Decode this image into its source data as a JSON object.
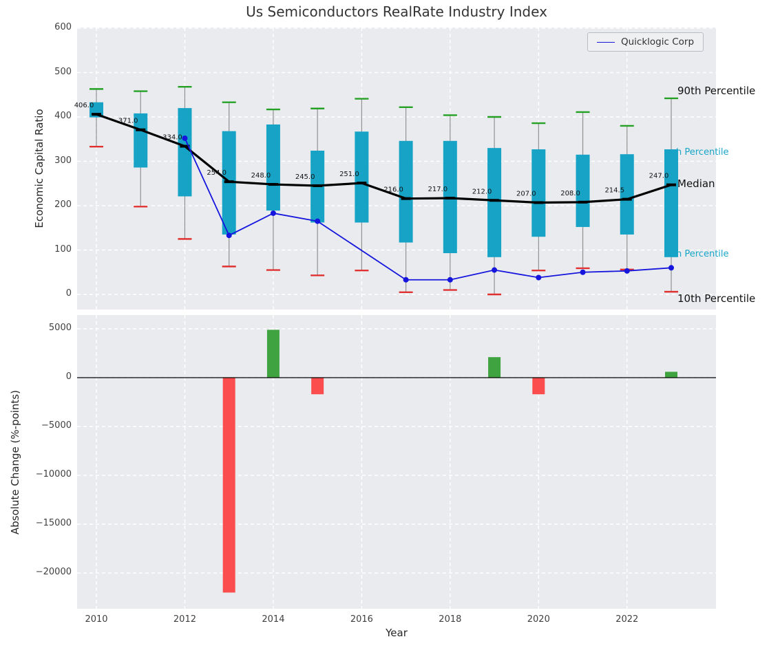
{
  "figure": {
    "title": "Us Semiconductors RealRate Industry Index",
    "top_ylabel": "Economic Capital Ratio",
    "bottom_ylabel": "Absolute Change (%-points)",
    "xlabel": "Year",
    "legend_label": "Quicklogic Corp",
    "right_labels": {
      "p90": "90th Percentile",
      "p75": "h Percentile",
      "median": "Median",
      "p25": "h Percentile",
      "p10": "10th Percentile"
    }
  },
  "chart_data": [
    {
      "type": "line",
      "subtype": "percentile-band-boxes-with-median-and-series",
      "title": "Us Semiconductors RealRate Industry Index",
      "ylabel": "Economic Capital Ratio",
      "ylim": [
        -34,
        602
      ],
      "grid": true,
      "legend_position": "upper right",
      "years": [
        2010,
        2011,
        2012,
        2013,
        2014,
        2015,
        2016,
        2017,
        2018,
        2019,
        2020,
        2021,
        2022,
        2023
      ],
      "xticks": [
        2010,
        2012,
        2014,
        2016,
        2018,
        2020,
        2022
      ],
      "yticks": [
        {
          "v": 0,
          "label": "0"
        },
        {
          "v": 100,
          "label": "100"
        },
        {
          "v": 200,
          "label": "200"
        },
        {
          "v": 300,
          "label": "300"
        },
        {
          "v": 400,
          "label": "400"
        },
        {
          "v": 500,
          "label": "500"
        },
        {
          "v": 600,
          "label": "600"
        }
      ],
      "p90": [
        463,
        458,
        468,
        433,
        417,
        419,
        441,
        422,
        404,
        400,
        386,
        411,
        380,
        442
      ],
      "q75": [
        433,
        408,
        420,
        368,
        383,
        324,
        367,
        346,
        346,
        330,
        327,
        315,
        316,
        327
      ],
      "median": [
        406,
        371,
        334,
        254,
        248,
        245,
        251,
        216,
        217,
        212,
        207,
        208,
        214.5,
        247
      ],
      "median_labels": [
        "406.0",
        "371.0",
        "334.0",
        "254.0",
        "248.0",
        "245.0",
        "251.0",
        "216.0",
        "217.0",
        "212.0",
        "207.0",
        "208.0",
        "214.5",
        "247.0"
      ],
      "q25": [
        399,
        286,
        221,
        135,
        189,
        162,
        162,
        117,
        93,
        84,
        130,
        152,
        135,
        84
      ],
      "p10": [
        333,
        198,
        125,
        63,
        55,
        43,
        54,
        5,
        10,
        0,
        54,
        59,
        56,
        6
      ],
      "series": [
        {
          "name": "Quicklogic Corp",
          "values": [
            null,
            null,
            352,
            133,
            183,
            165,
            null,
            33,
            33,
            55,
            38,
            50,
            53,
            60
          ]
        }
      ],
      "colors": {
        "box": "#17a3c6",
        "p90_cap": "#24a024",
        "p10_cap": "#e03030",
        "median": "#000000",
        "series_line": "#1515dd",
        "whisker": "#909090"
      }
    },
    {
      "type": "bar",
      "ylabel": "Absolute Change (%-points)",
      "xlabel": "Year",
      "grid": true,
      "years": [
        2010,
        2011,
        2012,
        2013,
        2014,
        2015,
        2016,
        2017,
        2018,
        2019,
        2020,
        2021,
        2022,
        2023
      ],
      "values": [
        0,
        0,
        0,
        -22000,
        4900,
        -1700,
        0,
        0,
        0,
        2100,
        -1700,
        0,
        0,
        600
      ],
      "xticks": [
        2010,
        2012,
        2014,
        2016,
        2018,
        2020,
        2022
      ],
      "yticks": [
        {
          "v": 5000,
          "label": "5000"
        },
        {
          "v": 0,
          "label": "0"
        },
        {
          "v": -5000,
          "label": "−5000"
        },
        {
          "v": -10000,
          "label": "−10000"
        },
        {
          "v": -15000,
          "label": "−15000"
        },
        {
          "v": -20000,
          "label": "−20000"
        }
      ],
      "positive_color": "#3fa33f",
      "negative_color": "#fb4d4d",
      "zero_line_color": "#000000"
    }
  ]
}
